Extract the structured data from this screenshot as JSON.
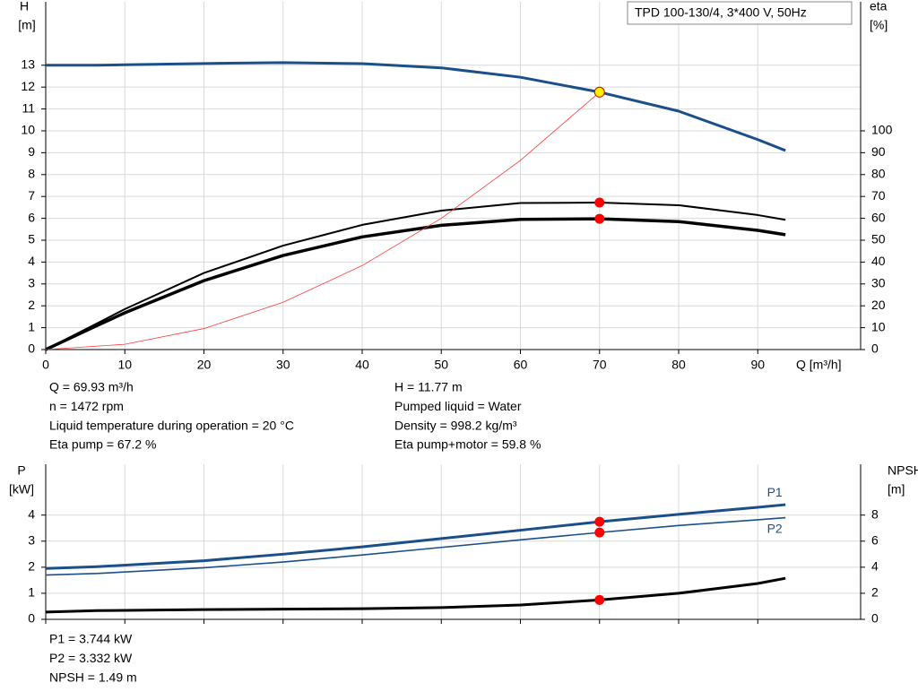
{
  "chart_data": [
    {
      "type": "line",
      "title": "TPD 100-130/4, 3*400 V, 50Hz",
      "ylabel": "H",
      "yunit": "[m]",
      "y2label": "eta",
      "y2unit": "[%]",
      "xlabel": "Q [m³/h]",
      "xlim": [
        0,
        103
      ],
      "ylim": [
        0,
        15.9
      ],
      "y2lim": [
        0,
        159
      ],
      "xticks": [
        0,
        10,
        20,
        30,
        40,
        50,
        60,
        70,
        80,
        90
      ],
      "yticks": [
        0,
        1,
        2,
        3,
        4,
        5,
        6,
        7,
        8,
        9,
        10,
        11,
        12,
        13
      ],
      "y2ticks": [
        0,
        10,
        20,
        30,
        40,
        50,
        60,
        70,
        80,
        90,
        100
      ],
      "grid": true,
      "series": [
        {
          "color": "#1b4f8a",
          "width": 3,
          "x": [
            0,
            6.5,
            10,
            20,
            30,
            40,
            50,
            60,
            70,
            80,
            90,
            93.5
          ],
          "values": [
            13.0,
            13.0,
            13.02,
            13.08,
            13.12,
            13.07,
            12.88,
            12.45,
            11.77,
            10.9,
            9.6,
            9.1
          ]
        },
        {
          "color": "#000000",
          "width": 2,
          "axis": "y2",
          "x": [
            0,
            6.5,
            10,
            20,
            30,
            40,
            50,
            60,
            70,
            80,
            90,
            93.5
          ],
          "values": [
            0,
            12,
            18.5,
            35,
            47.5,
            57,
            63.5,
            67,
            67.2,
            66,
            61.5,
            59.3
          ]
        },
        {
          "color": "#000000",
          "width": 3.5,
          "axis": "y2",
          "x": [
            0,
            6.5,
            10,
            20,
            30,
            40,
            50,
            60,
            70,
            80,
            90,
            93.5
          ],
          "values": [
            0,
            11,
            16.8,
            31.5,
            43,
            51.5,
            56.8,
            59.5,
            59.8,
            58.5,
            54.5,
            52.5
          ]
        },
        {
          "color": "#ff3b3b",
          "width": 0.8,
          "x": [
            0,
            10,
            20,
            30,
            40,
            50,
            60,
            70
          ],
          "values": [
            0,
            0.24,
            0.96,
            2.16,
            3.84,
            6.0,
            8.65,
            11.77
          ]
        }
      ],
      "points": [
        {
          "color": "#ffee00",
          "x": 70,
          "value": 11.77
        },
        {
          "color": "#ff0000",
          "axis": "y2",
          "x": 70,
          "value": 67.2
        },
        {
          "color": "#ff0000",
          "axis": "y2",
          "x": 70,
          "value": 59.8
        }
      ],
      "notes_left": [
        "Q = 69.93 m³/h",
        "n = 1472 rpm",
        "Liquid temperature during operation = 20 °C",
        "Eta pump = 67.2 %"
      ],
      "notes_right": [
        "H = 11.77 m",
        "Pumped liquid = Water",
        "Density = 998.2 kg/m³",
        "Eta pump+motor = 59.8 %"
      ]
    },
    {
      "type": "line",
      "ylabel": "P",
      "yunit": "[kW]",
      "y2label": "NPSH",
      "y2unit": "[m]",
      "xlim": [
        0,
        103
      ],
      "ylim": [
        0,
        5.95
      ],
      "y2lim": [
        0,
        11.9
      ],
      "yticks": [
        0,
        1,
        2,
        3,
        4
      ],
      "y2ticks": [
        0,
        2,
        4,
        6,
        8
      ],
      "grid": true,
      "series": [
        {
          "name": "P1",
          "color": "#1b4f8a",
          "width": 3,
          "x": [
            0,
            6.5,
            20,
            30,
            40,
            50,
            60,
            70,
            80,
            90,
            93.5
          ],
          "values": [
            1.95,
            2.02,
            2.25,
            2.5,
            2.78,
            3.1,
            3.42,
            3.744,
            4.03,
            4.3,
            4.4
          ]
        },
        {
          "name": "P2",
          "color": "#1b4f8a",
          "width": 1.6,
          "x": [
            0,
            6.5,
            20,
            30,
            40,
            50,
            60,
            70,
            80,
            90,
            93.5
          ],
          "values": [
            1.7,
            1.76,
            1.98,
            2.2,
            2.47,
            2.76,
            3.05,
            3.332,
            3.6,
            3.82,
            3.9
          ]
        },
        {
          "color": "#000000",
          "width": 3,
          "axis": "y2",
          "x": [
            0,
            6.5,
            20,
            30,
            40,
            50,
            60,
            70,
            80,
            90,
            93.5
          ],
          "values": [
            0.56,
            0.67,
            0.75,
            0.78,
            0.82,
            0.9,
            1.1,
            1.49,
            2.0,
            2.75,
            3.15
          ]
        }
      ],
      "points": [
        {
          "color": "#ff0000",
          "x": 70,
          "value": 3.744
        },
        {
          "color": "#ff0000",
          "x": 70,
          "value": 3.332
        },
        {
          "color": "#ff0000",
          "axis": "y2",
          "x": 70,
          "value": 1.49
        }
      ],
      "notes_left": [
        "P1 = 3.744 kW",
        "P2 = 3.332 kW",
        "NPSH = 1.49 m"
      ]
    }
  ]
}
